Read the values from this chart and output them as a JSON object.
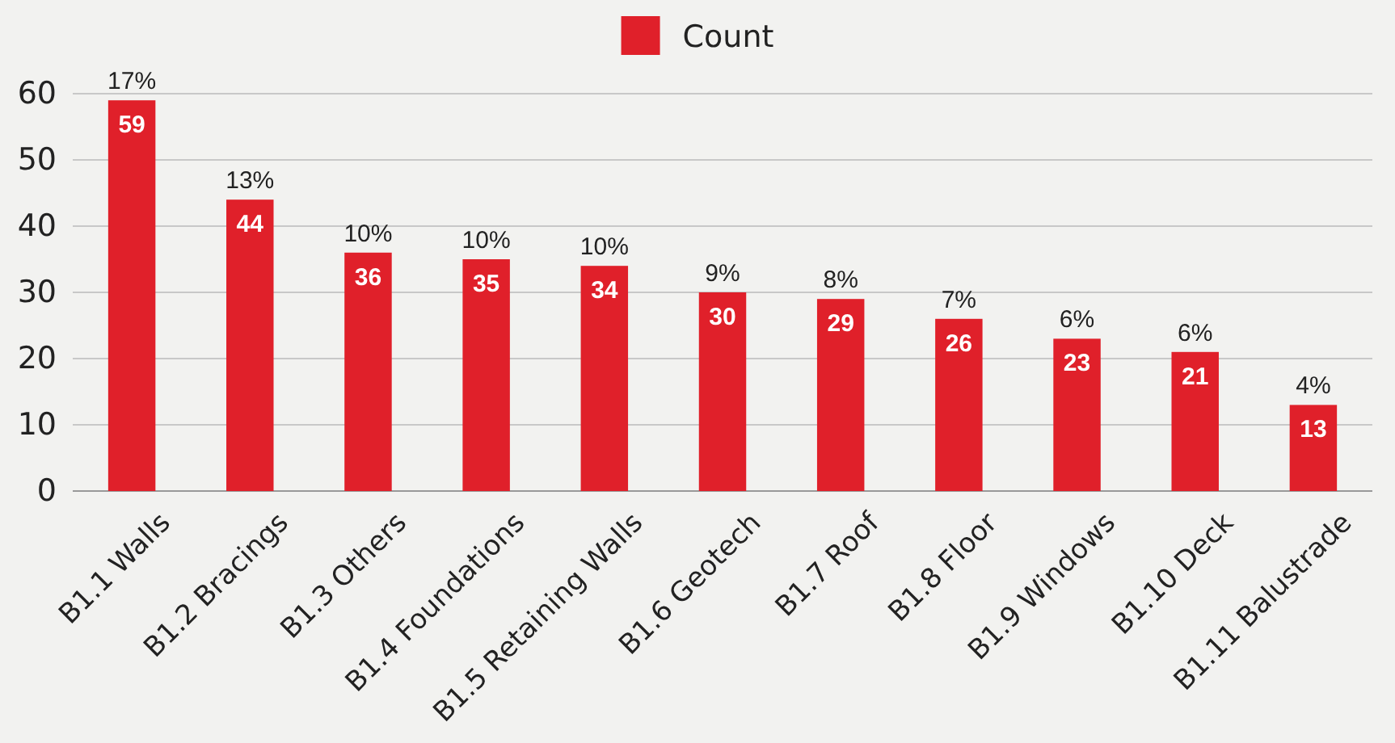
{
  "chart_data": {
    "type": "bar",
    "categories": [
      "B1.1 Walls",
      "B1.2 Bracings",
      "B1.3 Others",
      "B1.4 Foundations",
      "B1.5 Retaining Walls",
      "B1.6 Geotech",
      "B1.7 Roof",
      "B1.8 Floor",
      "B1.9 Windows",
      "B1.10 Deck",
      "B1.11 Balustrade"
    ],
    "series": [
      {
        "name": "Count",
        "color": "#e0202a",
        "values": [
          59,
          44,
          36,
          35,
          34,
          30,
          29,
          26,
          23,
          21,
          13
        ]
      }
    ],
    "ylim": [
      0,
      60
    ],
    "yticks": [
      0,
      10,
      20,
      30,
      40,
      50,
      60
    ],
    "grid": "y",
    "legend": "top",
    "data_labels": true,
    "annotations": [
      "17%",
      "13%",
      "10%",
      "10%",
      "10%",
      "9%",
      "8%",
      "7%",
      "6%",
      "6%",
      "4%"
    ]
  }
}
